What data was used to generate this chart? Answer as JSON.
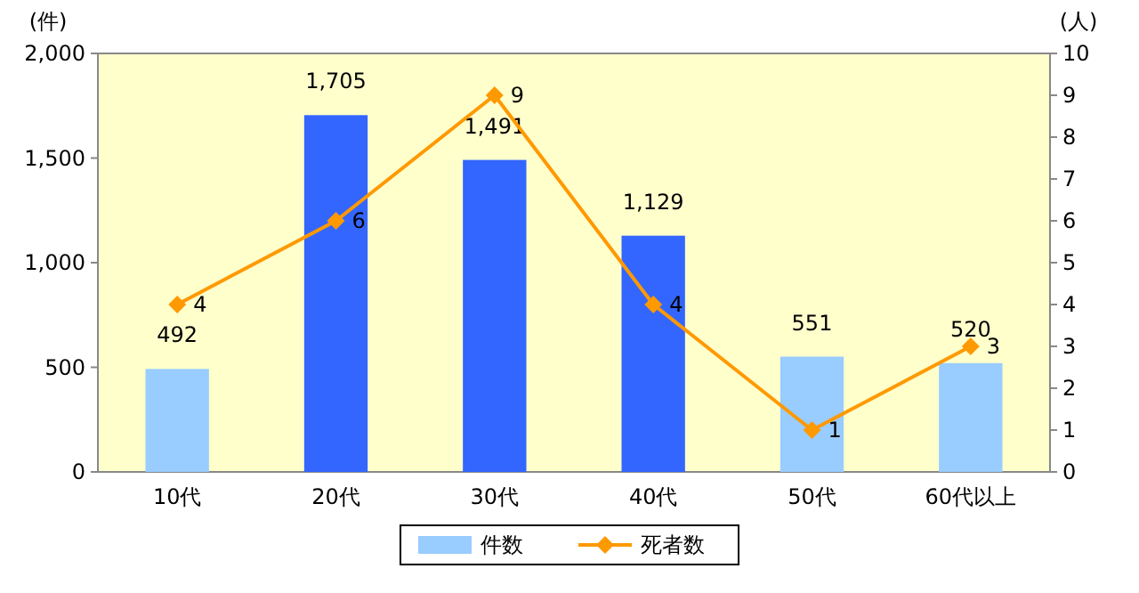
{
  "chart_data": {
    "type": "bar",
    "categories": [
      "10代",
      "20代",
      "30代",
      "40代",
      "50代",
      "60代以上"
    ],
    "ylabel": "(件)",
    "y2label": "(人)",
    "ylim": [
      0,
      2000
    ],
    "yticks": [
      0,
      {
        "value": 500,
        "label": "500"
      },
      {
        "value": 1000,
        "label": "1,000"
      },
      {
        "value": 1500,
        "label": "1,500"
      },
      {
        "value": 2000,
        "label": "2,000"
      }
    ],
    "y2lim": [
      0,
      10
    ],
    "y2ticks": [
      0,
      1,
      2,
      3,
      4,
      5,
      6,
      7,
      8,
      9,
      10
    ],
    "grid": false,
    "legend": "bottom",
    "series": [
      {
        "name": "件数",
        "color": "#99ccff",
        "colors": [
          "#99ccff",
          "#3366ff",
          "#3366ff",
          "#3366ff",
          "#99ccff",
          "#99ccff"
        ],
        "values": [
          492,
          1705,
          1491,
          1129,
          551,
          520
        ],
        "value_labels": [
          "492",
          "1,705",
          "1,491",
          "1,129",
          "551",
          "520"
        ]
      },
      {
        "name": "死者数",
        "type": "line",
        "axis": "y2",
        "color": "#ff9900",
        "marker": "diamond",
        "values": [
          4,
          6,
          9,
          4,
          1,
          3
        ],
        "value_labels": [
          "4",
          "6",
          "9",
          "4",
          "1",
          "3"
        ]
      }
    ]
  }
}
